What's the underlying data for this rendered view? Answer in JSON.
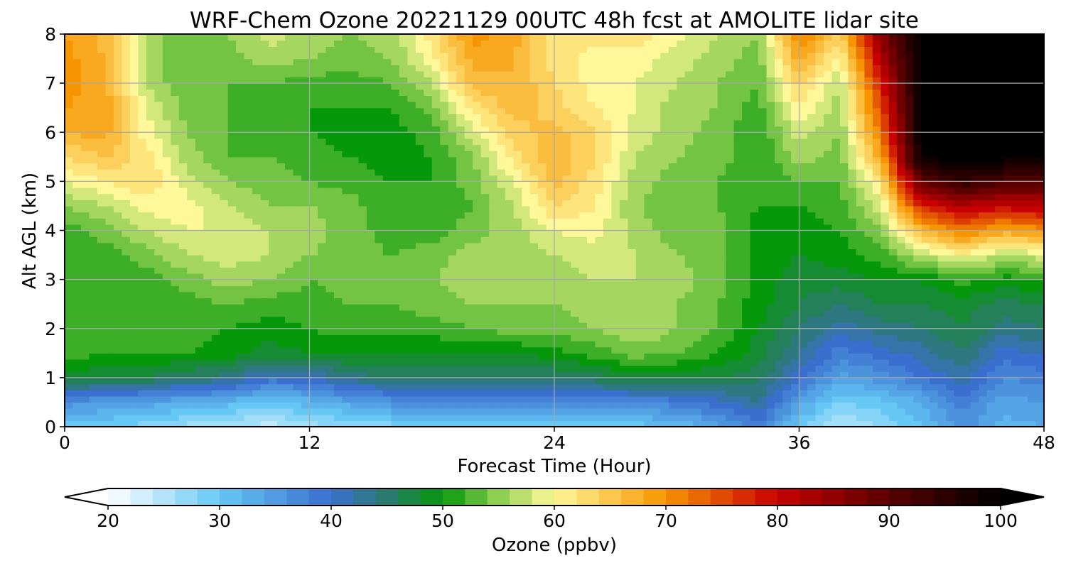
{
  "chart_data": {
    "type": "heatmap",
    "title": "WRF-Chem Ozone  20221129 00UTC 48h fcst at AMOLITE lidar site",
    "xlabel": "Forecast Time (Hour)",
    "ylabel": "Alt AGL (km)",
    "xlim": [
      0,
      48
    ],
    "ylim": [
      0,
      8
    ],
    "x_ticks": [
      "0",
      "12",
      "24",
      "36",
      "48"
    ],
    "y_ticks": [
      "0",
      "1",
      "2",
      "3",
      "4",
      "5",
      "6",
      "7",
      "8"
    ],
    "grid": true,
    "colorbar": {
      "label": "Ozone  (ppbv)",
      "orientation": "horizontal",
      "placement": "bottom",
      "range": [
        20,
        100
      ],
      "extend": "both",
      "ticks": [
        "20",
        "30",
        "40",
        "50",
        "60",
        "70",
        "80",
        "90",
        "100"
      ],
      "stops": [
        {
          "v": 20,
          "c": "#ffffff"
        },
        {
          "v": 30,
          "c": "#66c8f4"
        },
        {
          "v": 40,
          "c": "#3b6fcf"
        },
        {
          "v": 45,
          "c": "#2b7a6e"
        },
        {
          "v": 50,
          "c": "#06980b"
        },
        {
          "v": 55,
          "c": "#8fcf52"
        },
        {
          "v": 60,
          "c": "#fff89a"
        },
        {
          "v": 70,
          "c": "#f79500"
        },
        {
          "v": 80,
          "c": "#c80000"
        },
        {
          "v": 90,
          "c": "#5a0000"
        },
        {
          "v": 100,
          "c": "#000000"
        }
      ]
    },
    "x_hours": [
      0,
      2,
      4,
      6,
      8,
      10,
      12,
      14,
      16,
      18,
      20,
      22,
      24,
      26,
      28,
      30,
      32,
      34,
      36,
      38,
      40,
      42,
      44,
      46,
      48
    ],
    "z_altitudes_km": [
      0,
      0.5,
      1,
      1.5,
      2,
      2.5,
      3,
      3.5,
      4,
      4.5,
      5,
      5.5,
      6,
      6.5,
      7,
      7.5,
      8
    ],
    "ozone_ppbv": [
      [
        30,
        29,
        28,
        26,
        25,
        24,
        26,
        27,
        28,
        29,
        29,
        29,
        29,
        29,
        30,
        31,
        34,
        38,
        30,
        25,
        27,
        31,
        36,
        32,
        33
      ],
      [
        36,
        35,
        34,
        33,
        32,
        30,
        32,
        34,
        36,
        37,
        37,
        37,
        37,
        37,
        37,
        38,
        40,
        43,
        34,
        29,
        30,
        33,
        38,
        34,
        35
      ],
      [
        48,
        47,
        47,
        45,
        44,
        40,
        41,
        44,
        45,
        45,
        45,
        45,
        45,
        46,
        48,
        48,
        47,
        46,
        40,
        34,
        36,
        39,
        42,
        37,
        38
      ],
      [
        52,
        51,
        51,
        51,
        50,
        48,
        49,
        49,
        49,
        49,
        49,
        49,
        50,
        52,
        54,
        53,
        51,
        48,
        43,
        38,
        40,
        42,
        45,
        40,
        41
      ],
      [
        53,
        53,
        52,
        52,
        51,
        50,
        51,
        52,
        52,
        52,
        53,
        54,
        54,
        55,
        57,
        55,
        53,
        49,
        45,
        42,
        44,
        45,
        47,
        44,
        45
      ],
      [
        52,
        52,
        51,
        52,
        53,
        52,
        52,
        53,
        53,
        54,
        55,
        55,
        55,
        56,
        57,
        55,
        53,
        50,
        47,
        45,
        47,
        47,
        48,
        46,
        47
      ],
      [
        51,
        51,
        52,
        54,
        56,
        55,
        53,
        54,
        54,
        55,
        56,
        56,
        56,
        57,
        57,
        56,
        54,
        50,
        48,
        48,
        49,
        49,
        52,
        50,
        51
      ],
      [
        51,
        52,
        54,
        57,
        58,
        57,
        55,
        54,
        53,
        54,
        56,
        56,
        57,
        58,
        57,
        55,
        54,
        50,
        49,
        50,
        52,
        57,
        60,
        57,
        58
      ],
      [
        52,
        54,
        57,
        59,
        59,
        57,
        56,
        54,
        52,
        52,
        54,
        56,
        59,
        60,
        56,
        54,
        54,
        50,
        50,
        51,
        55,
        66,
        72,
        68,
        70
      ],
      [
        55,
        57,
        60,
        60,
        57,
        55,
        55,
        54,
        51,
        51,
        53,
        57,
        63,
        61,
        55,
        54,
        53,
        51,
        51,
        52,
        58,
        78,
        82,
        80,
        82
      ],
      [
        59,
        61,
        63,
        58,
        55,
        54,
        53,
        52,
        51,
        51,
        54,
        59,
        66,
        62,
        56,
        54,
        53,
        51,
        53,
        53,
        62,
        90,
        95,
        92,
        90
      ],
      [
        63,
        65,
        62,
        56,
        53,
        53,
        52,
        51,
        50,
        51,
        55,
        62,
        67,
        63,
        57,
        55,
        54,
        51,
        56,
        54,
        68,
        100,
        100,
        100,
        100
      ],
      [
        67,
        68,
        60,
        55,
        53,
        52,
        51,
        50,
        50,
        52,
        58,
        64,
        66,
        63,
        58,
        56,
        54,
        51,
        58,
        55,
        72,
        100,
        100,
        100,
        100
      ],
      [
        69,
        68,
        59,
        54,
        53,
        52,
        51,
        51,
        51,
        54,
        62,
        66,
        64,
        61,
        59,
        56,
        55,
        52,
        61,
        56,
        75,
        100,
        100,
        100,
        100
      ],
      [
        70,
        68,
        57,
        53,
        53,
        53,
        52,
        52,
        53,
        57,
        66,
        67,
        63,
        60,
        59,
        57,
        55,
        53,
        64,
        57,
        78,
        100,
        100,
        100,
        100
      ],
      [
        70,
        67,
        56,
        53,
        54,
        56,
        55,
        54,
        55,
        60,
        68,
        67,
        62,
        60,
        60,
        58,
        56,
        54,
        68,
        60,
        82,
        100,
        100,
        100,
        100
      ],
      [
        69,
        66,
        56,
        53,
        55,
        58,
        56,
        55,
        56,
        62,
        70,
        68,
        62,
        62,
        62,
        60,
        57,
        55,
        72,
        64,
        86,
        100,
        100,
        100,
        100
      ]
    ]
  }
}
